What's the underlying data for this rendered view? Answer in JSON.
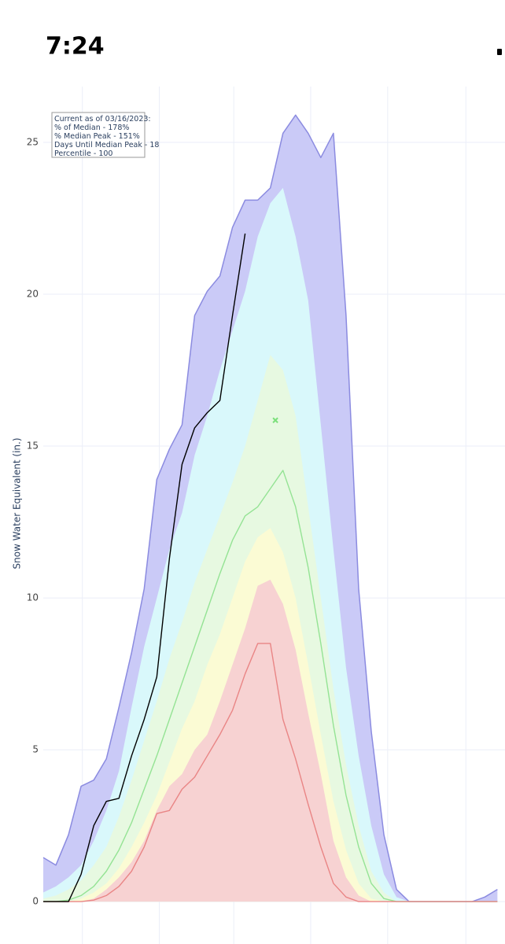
{
  "status_bar": {
    "time": "7:24"
  },
  "chart_data": {
    "type": "line",
    "y_label": "Snow Water Equivalent (in.)",
    "annotation": [
      "Current as of 03/16/2023:",
      "% of Median - 178%",
      "% Median Peak - 151%",
      "Days Until Median Peak - 18",
      "Percentile - 100"
    ],
    "x": [
      0,
      10,
      20,
      30,
      40,
      50,
      60,
      70,
      80,
      90,
      100,
      110,
      120,
      130,
      140,
      150,
      160,
      170,
      180,
      190,
      200,
      210,
      220,
      230,
      240,
      250,
      260,
      270,
      280,
      290,
      300,
      310,
      320,
      330,
      340,
      350,
      360
    ],
    "xlim": [
      0,
      366
    ],
    "xgrid": [
      31,
      92,
      151,
      212,
      273,
      335
    ],
    "ylim": [
      -0.36,
      26.84
    ],
    "yticks": [
      0,
      5,
      10,
      15,
      20,
      25
    ],
    "grid": true,
    "series": [
      {
        "color": "#8b8be0",
        "fill": "#cacaf7",
        "values": [
          1.45,
          1.2,
          2.2,
          3.8,
          4.0,
          4.7,
          6.4,
          8.2,
          10.3,
          13.9,
          14.9,
          15.7,
          19.3,
          20.1,
          20.6,
          22.2,
          23.1,
          23.1,
          23.5,
          25.3,
          25.9,
          25.3,
          24.5,
          25.3,
          19.3,
          10.3,
          5.6,
          2.2,
          0.4,
          0,
          0,
          0,
          0,
          0,
          0,
          0.15,
          0.4
        ]
      },
      {
        "fill": "#d9f8fb",
        "values": [
          0.3,
          0.5,
          0.8,
          1.2,
          2.0,
          3.0,
          4.3,
          6.4,
          8.4,
          10.0,
          11.6,
          12.8,
          14.7,
          16.0,
          17.5,
          18.8,
          20.1,
          21.9,
          23.0,
          23.5,
          21.9,
          19.8,
          15.7,
          11.6,
          7.7,
          4.8,
          2.5,
          0.9,
          0.15,
          0,
          0,
          0,
          0,
          0,
          0,
          0,
          0
        ]
      },
      {
        "fill": "#e7f9e1",
        "values": [
          0.1,
          0.2,
          0.4,
          0.7,
          1.2,
          1.8,
          2.8,
          4.0,
          5.3,
          6.6,
          8.0,
          9.2,
          10.5,
          11.6,
          12.7,
          13.8,
          15.0,
          16.5,
          18.0,
          17.5,
          16.0,
          13.0,
          10.0,
          7.0,
          4.5,
          2.5,
          1.0,
          0.3,
          0,
          0,
          0,
          0,
          0,
          0,
          0,
          0,
          0
        ]
      },
      {
        "fill": "#fbfbd4",
        "values": [
          0,
          0,
          0,
          0.1,
          0.3,
          0.6,
          1.1,
          1.8,
          2.6,
          3.5,
          4.6,
          5.7,
          6.6,
          7.8,
          8.8,
          10.0,
          11.2,
          12.0,
          12.3,
          11.5,
          10.0,
          7.8,
          5.5,
          3.3,
          1.7,
          0.6,
          0.1,
          0,
          0,
          0,
          0,
          0,
          0,
          0,
          0,
          0,
          0
        ]
      },
      {
        "fill": "#f7d2d2",
        "values": [
          0,
          0,
          0,
          0,
          0.1,
          0.4,
          0.8,
          1.3,
          2.0,
          3.0,
          3.8,
          4.2,
          5.0,
          5.5,
          6.6,
          7.8,
          9.0,
          10.4,
          10.6,
          9.8,
          8.3,
          6.2,
          4.2,
          2.0,
          0.8,
          0.2,
          0,
          0,
          0,
          0,
          0,
          0,
          0,
          0,
          0,
          0,
          0
        ]
      },
      {
        "color": "#94e394",
        "values": [
          0,
          0,
          0.05,
          0.2,
          0.5,
          1.0,
          1.7,
          2.6,
          3.7,
          4.8,
          6.0,
          7.2,
          8.4,
          9.6,
          10.8,
          11.9,
          12.7,
          13.0,
          13.6,
          14.2,
          13.0,
          11.0,
          8.5,
          5.8,
          3.5,
          1.8,
          0.6,
          0.1,
          0,
          0,
          0,
          0,
          0,
          0,
          0,
          0,
          0
        ]
      },
      {
        "color": "#e98585",
        "values": [
          0,
          0,
          0,
          0,
          0.05,
          0.2,
          0.5,
          1.0,
          1.8,
          2.9,
          3.0,
          3.7,
          4.1,
          4.8,
          5.5,
          6.3,
          7.5,
          8.5,
          8.5,
          6.0,
          4.7,
          3.2,
          1.8,
          0.6,
          0.15,
          0,
          0,
          0,
          0,
          0,
          0,
          0,
          0,
          0,
          0,
          0,
          0
        ]
      },
      {
        "color": "#000000",
        "values": [
          0,
          0,
          0,
          0.9,
          2.5,
          3.3,
          3.4,
          4.8,
          6.0,
          7.4,
          11.3,
          14.4,
          15.6,
          16.1,
          16.5,
          19.3,
          22.0,
          null,
          null,
          null,
          null,
          null,
          null,
          null,
          null,
          null,
          null,
          null,
          null,
          null,
          null,
          null,
          null,
          null,
          null,
          null,
          null
        ]
      }
    ],
    "markers": [
      {
        "x": 184,
        "y": 15.85,
        "color": "#7be07b"
      }
    ]
  }
}
